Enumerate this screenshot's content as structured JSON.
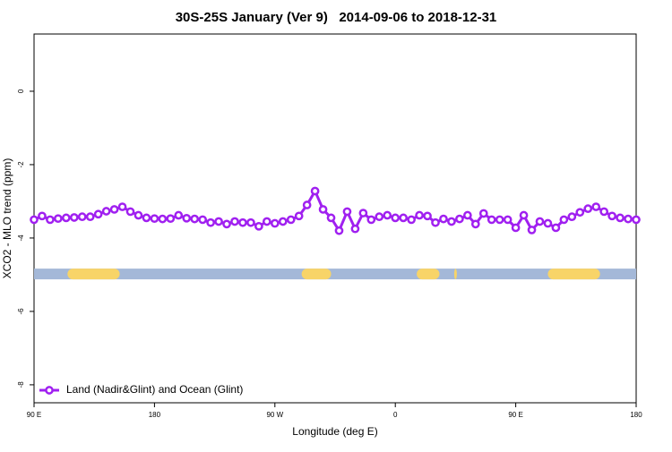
{
  "chart_data": {
    "type": "line",
    "title": "30S-25S January (Ver 9)   2014-09-06 to 2018-12-31",
    "x_label": "Longitude (deg E)",
    "y_label": "XCO2 - MLO trend (ppm)",
    "xlim": [
      90,
      540
    ],
    "ylim": [
      -8.49,
      1.56
    ],
    "xticks": [
      {
        "value": 90,
        "label": "90 E"
      },
      180,
      {
        "value": 270,
        "label": "90 W"
      },
      {
        "value": 360,
        "label": "0"
      },
      {
        "value": 450,
        "label": "90 E"
      },
      {
        "value": 540,
        "label": "180"
      }
    ],
    "yticks": [
      0,
      -2,
      -4,
      -6,
      -8
    ],
    "legend": "bottom-left",
    "x": [
      90,
      96,
      102,
      108,
      114,
      120,
      126,
      132,
      138,
      144,
      150,
      156,
      162,
      168,
      174,
      180,
      186,
      192,
      198,
      204,
      210,
      216,
      222,
      228,
      234,
      240,
      246,
      252,
      258,
      264,
      270,
      276,
      282,
      288,
      294,
      300,
      306,
      312,
      318,
      324,
      330,
      336,
      342,
      348,
      354,
      360,
      366,
      372,
      378,
      384,
      390,
      396,
      402,
      408,
      414,
      420,
      426,
      432,
      438,
      444,
      450,
      456,
      462,
      468,
      474,
      480,
      486,
      492,
      498,
      504,
      510,
      516,
      522,
      528,
      534,
      540
    ],
    "series": [
      {
        "name": "Land (Nadir&Glint) and Ocean (Glint)",
        "color": "#a020f0",
        "values": [
          -3.5,
          -3.4,
          -3.5,
          -3.47,
          -3.45,
          -3.44,
          -3.42,
          -3.42,
          -3.35,
          -3.27,
          -3.22,
          -3.15,
          -3.28,
          -3.38,
          -3.45,
          -3.47,
          -3.48,
          -3.47,
          -3.38,
          -3.46,
          -3.48,
          -3.5,
          -3.58,
          -3.55,
          -3.62,
          -3.55,
          -3.58,
          -3.58,
          -3.68,
          -3.55,
          -3.6,
          -3.55,
          -3.5,
          -3.4,
          -3.1,
          -2.72,
          -3.22,
          -3.45,
          -3.8,
          -3.28,
          -3.75,
          -3.32,
          -3.5,
          -3.42,
          -3.38,
          -3.45,
          -3.45,
          -3.5,
          -3.38,
          -3.4,
          -3.58,
          -3.48,
          -3.55,
          -3.48,
          -3.38,
          -3.62,
          -3.33,
          -3.5,
          -3.5,
          -3.5,
          -3.72,
          -3.38,
          -3.78,
          -3.55,
          -3.6,
          -3.72,
          -3.5,
          -3.42,
          -3.3,
          -3.2,
          -3.15,
          -3.28,
          -3.4,
          -3.45,
          -3.48,
          -3.5
        ]
      }
    ],
    "surface_band": {
      "y": -4.98,
      "ocean_color": "#a4b8d8",
      "land_color": "#f8d468",
      "land": [
        [
          115,
          154
        ],
        [
          290,
          312
        ],
        [
          376,
          393
        ],
        [
          404,
          406
        ],
        [
          474,
          513
        ]
      ]
    }
  }
}
